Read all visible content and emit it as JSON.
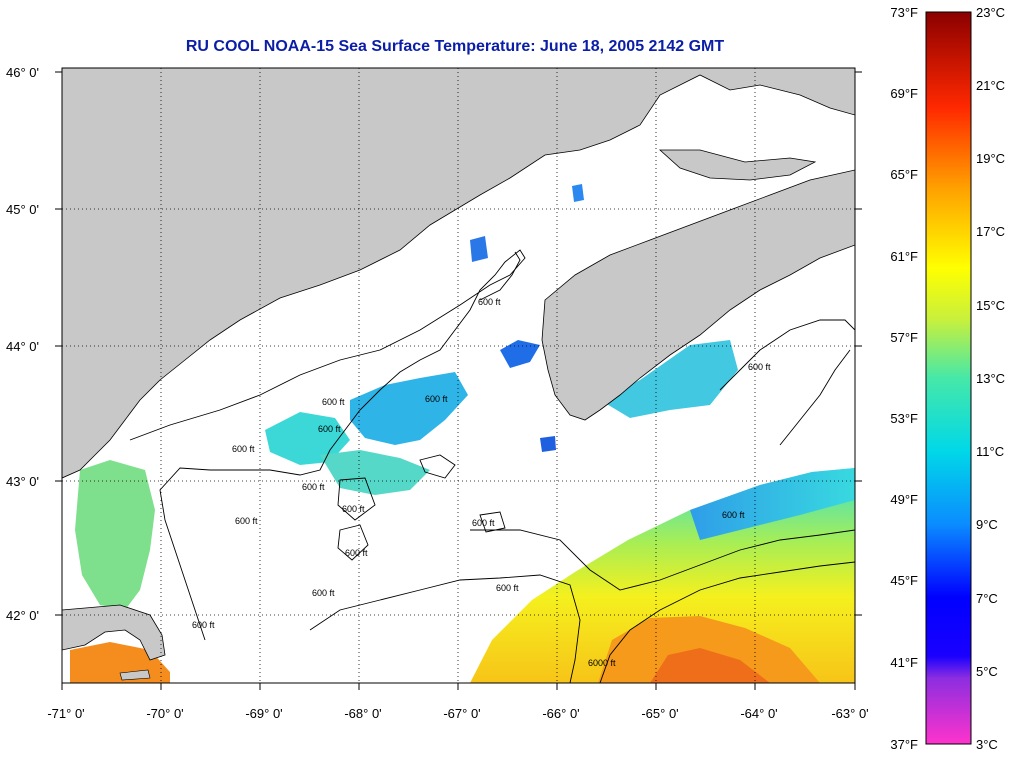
{
  "title": "RU COOL  NOAA-15  Sea Surface Temperature:  June 18, 2005 2142 GMT",
  "map": {
    "lon_range": [
      -71,
      -63
    ],
    "lat_range": [
      41.5,
      46.1
    ],
    "lon_ticks": [
      "-71° 0'",
      "-70° 0'",
      "-69° 0'",
      "-68° 0'",
      "-67° 0'",
      "-66° 0'",
      "-65° 0'",
      "-64° 0'",
      "-63° 0'"
    ],
    "lat_ticks": [
      "46° 0'",
      "45° 0'",
      "44° 0'",
      "43° 0'",
      "42° 0'"
    ],
    "gridlines": true,
    "land_color": "#c8c8c8",
    "contour_labels": [
      "600 ft",
      "600 ft",
      "600 ft",
      "600 ft",
      "600 ft",
      "600 ft",
      "600 ft",
      "600 ft",
      "600 ft",
      "600 ft",
      "600 ft",
      "600 ft",
      "600 ft",
      "6000 ft",
      "600 ft",
      "600 ft"
    ]
  },
  "colorbar": {
    "fahrenheit_labels": [
      "73°F",
      "69°F",
      "65°F",
      "61°F",
      "57°F",
      "53°F",
      "49°F",
      "45°F",
      "41°F",
      "37°F"
    ],
    "celsius_labels": [
      "23°C",
      "21°C",
      "19°C",
      "17°C",
      "15°C",
      "13°C",
      "11°C",
      "9°C",
      "7°C",
      "5°C",
      "3°C"
    ],
    "range_c": [
      3,
      23
    ],
    "colors": [
      "#ff33cc",
      "#6a2adb",
      "#0000ff",
      "#0b8cff",
      "#00d8e8",
      "#46e8a8",
      "#c8f03c",
      "#ffff00",
      "#ffa000",
      "#ff2800",
      "#8b0000"
    ]
  }
}
